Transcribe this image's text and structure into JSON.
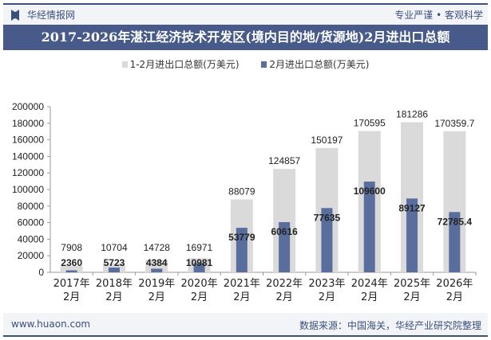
{
  "header": {
    "brand": "华经情报网",
    "slogan": "专业严谨 • 客观科学"
  },
  "footer": {
    "website": "www.huaon.com",
    "source": "数据来源：中国海关，华经产业研究院整理"
  },
  "colors": {
    "series1": "#d9d9d9",
    "series2": "#5a6e9e",
    "title_bg": "#475a8a"
  },
  "chart_data": {
    "type": "bar",
    "title": "2017-2026年湛江经济技术开发区(境内目的地/货源地)2月进出口总额",
    "categories": [
      "2017年\n2月",
      "2018年\n2月",
      "2019年\n2月",
      "2020年\n2月",
      "2021年\n2月",
      "2022年\n2月",
      "2023年\n2月",
      "2024年\n2月",
      "2025年\n2月",
      "2026年\n2月"
    ],
    "series": [
      {
        "name": "1-2月进出口总额(万美元)",
        "values": [
          7908,
          10704,
          14728,
          16971,
          88079,
          124857,
          150197,
          170595,
          181286,
          170359.7
        ],
        "labels": [
          "7908",
          "10704",
          "14728",
          "16971",
          "88079",
          "124857",
          "150197",
          "170595",
          "181286",
          "170359.7"
        ]
      },
      {
        "name": "2月进出口总额(万美元)",
        "values": [
          2360,
          5723,
          4384,
          10981,
          53779,
          60616,
          77635,
          109600,
          89127,
          72785.4
        ],
        "labels": [
          "2360",
          "5723",
          "4384",
          "10981",
          "53779",
          "60616",
          "77635",
          "109600",
          "89127",
          "72785.4"
        ]
      }
    ],
    "ylim": [
      0,
      200000
    ],
    "yticks": [
      "0",
      "20000",
      "40000",
      "60000",
      "80000",
      "100000",
      "120000",
      "140000",
      "160000",
      "180000",
      "200000"
    ],
    "legend": "top",
    "grid": false
  }
}
